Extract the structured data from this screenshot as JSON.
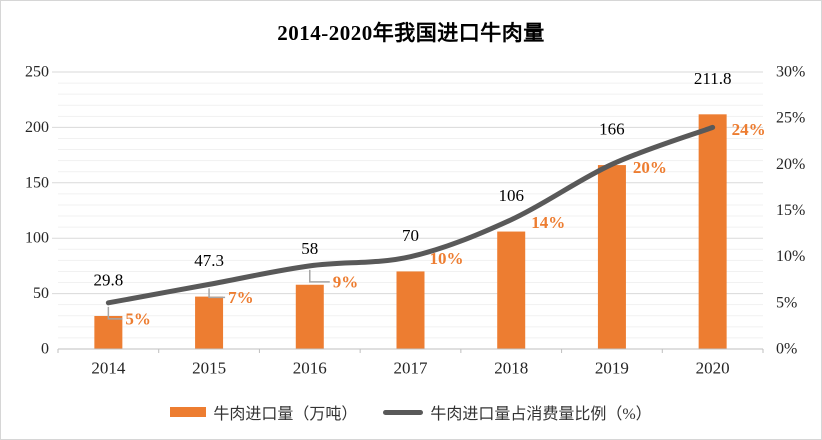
{
  "chart_data": {
    "type": "combo",
    "title": "2014-2020年我国进口牛肉量",
    "categories": [
      "2014",
      "2015",
      "2016",
      "2017",
      "2018",
      "2019",
      "2020"
    ],
    "series": [
      {
        "name": "牛肉进口量（万吨）",
        "type": "bar",
        "axis": "left",
        "color": "#ED7D31",
        "values": [
          29.8,
          47.3,
          58,
          70,
          106,
          166,
          211.8
        ],
        "labels": [
          "29.8",
          "47.3",
          "58",
          "70",
          "106",
          "166",
          "211.8"
        ],
        "label_color": "#000000"
      },
      {
        "name": "牛肉进口量占消费量比例（%）",
        "type": "line",
        "axis": "right",
        "color": "#595959",
        "values": [
          5,
          7,
          9,
          10,
          14,
          20,
          24
        ],
        "labels": [
          "5%",
          "7%",
          "9%",
          "10%",
          "14%",
          "20%",
          "24%"
        ],
        "label_color": "#ED7D31"
      }
    ],
    "left_axis": {
      "min": 0,
      "max": 250,
      "major_step": 50,
      "minor_step": 10,
      "tick_labels": [
        "0",
        "50",
        "100",
        "150",
        "200",
        "250"
      ]
    },
    "right_axis": {
      "min": 0,
      "max": 30,
      "major_step": 5,
      "tick_labels": [
        "0%",
        "5%",
        "10%",
        "15%",
        "20%",
        "25%",
        "30%"
      ]
    },
    "grid": true,
    "legend_position": "bottom"
  },
  "palette": {
    "major_grid": "#DADADA",
    "minor_grid": "#F1F1F1",
    "axis_line": "#BFBFBF",
    "leader_line": "#A6A6A6",
    "tick_text": "#262626",
    "value_text": "#000000"
  }
}
